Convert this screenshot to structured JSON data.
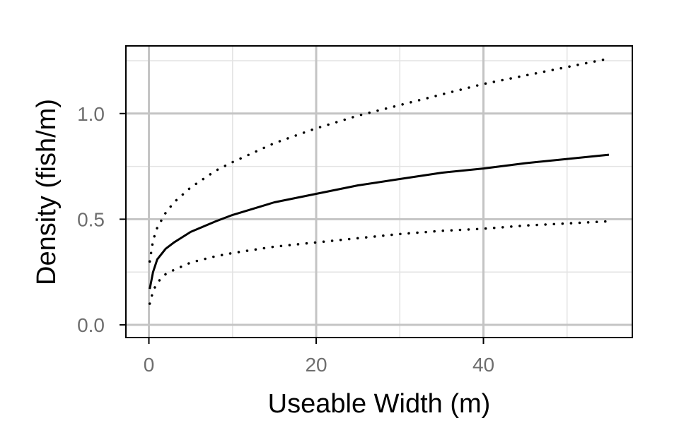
{
  "chart_data": {
    "type": "line",
    "title": "",
    "xlabel": "Useable Width (m)",
    "ylabel": "Density (fish/m)",
    "xlim": [
      -2.75,
      57.8
    ],
    "ylim": [
      -0.06,
      1.32
    ],
    "x_ticks": [
      0,
      20,
      40
    ],
    "x_tick_labels": [
      "0",
      "20",
      "40"
    ],
    "y_ticks": [
      0.0,
      0.5,
      1.0
    ],
    "y_tick_labels": [
      "0.0",
      "0.5",
      "1.0"
    ],
    "x_minor_ticks": [
      10,
      30,
      50
    ],
    "y_minor_ticks": [
      0.25,
      0.75,
      1.25
    ],
    "grid": true,
    "legend": "none",
    "colors": {
      "line": "#000000",
      "major_grid": "#c4c4c4",
      "minor_grid": "#e3e3e3",
      "tick_text": "#6e6e6e"
    },
    "series": [
      {
        "style": "dotted",
        "x": [
          0.1,
          0.5,
          1,
          2,
          3,
          5,
          8,
          10,
          15,
          20,
          25,
          30,
          35,
          40,
          45,
          50,
          55
        ],
        "y": [
          0.3,
          0.4,
          0.46,
          0.53,
          0.58,
          0.65,
          0.73,
          0.77,
          0.86,
          0.93,
          0.99,
          1.04,
          1.09,
          1.14,
          1.18,
          1.22,
          1.26
        ]
      },
      {
        "style": "solid",
        "x": [
          0.1,
          0.5,
          1,
          2,
          3,
          5,
          8,
          10,
          15,
          20,
          25,
          30,
          35,
          40,
          45,
          50,
          55
        ],
        "y": [
          0.17,
          0.25,
          0.31,
          0.36,
          0.39,
          0.44,
          0.49,
          0.52,
          0.58,
          0.62,
          0.66,
          0.69,
          0.72,
          0.74,
          0.765,
          0.785,
          0.805
        ]
      },
      {
        "style": "dotted",
        "x": [
          0.1,
          0.5,
          1,
          2,
          3,
          5,
          8,
          10,
          15,
          20,
          25,
          30,
          35,
          40,
          45,
          50,
          55
        ],
        "y": [
          0.1,
          0.16,
          0.2,
          0.24,
          0.26,
          0.295,
          0.325,
          0.34,
          0.37,
          0.39,
          0.41,
          0.43,
          0.445,
          0.455,
          0.47,
          0.48,
          0.49
        ]
      }
    ]
  }
}
